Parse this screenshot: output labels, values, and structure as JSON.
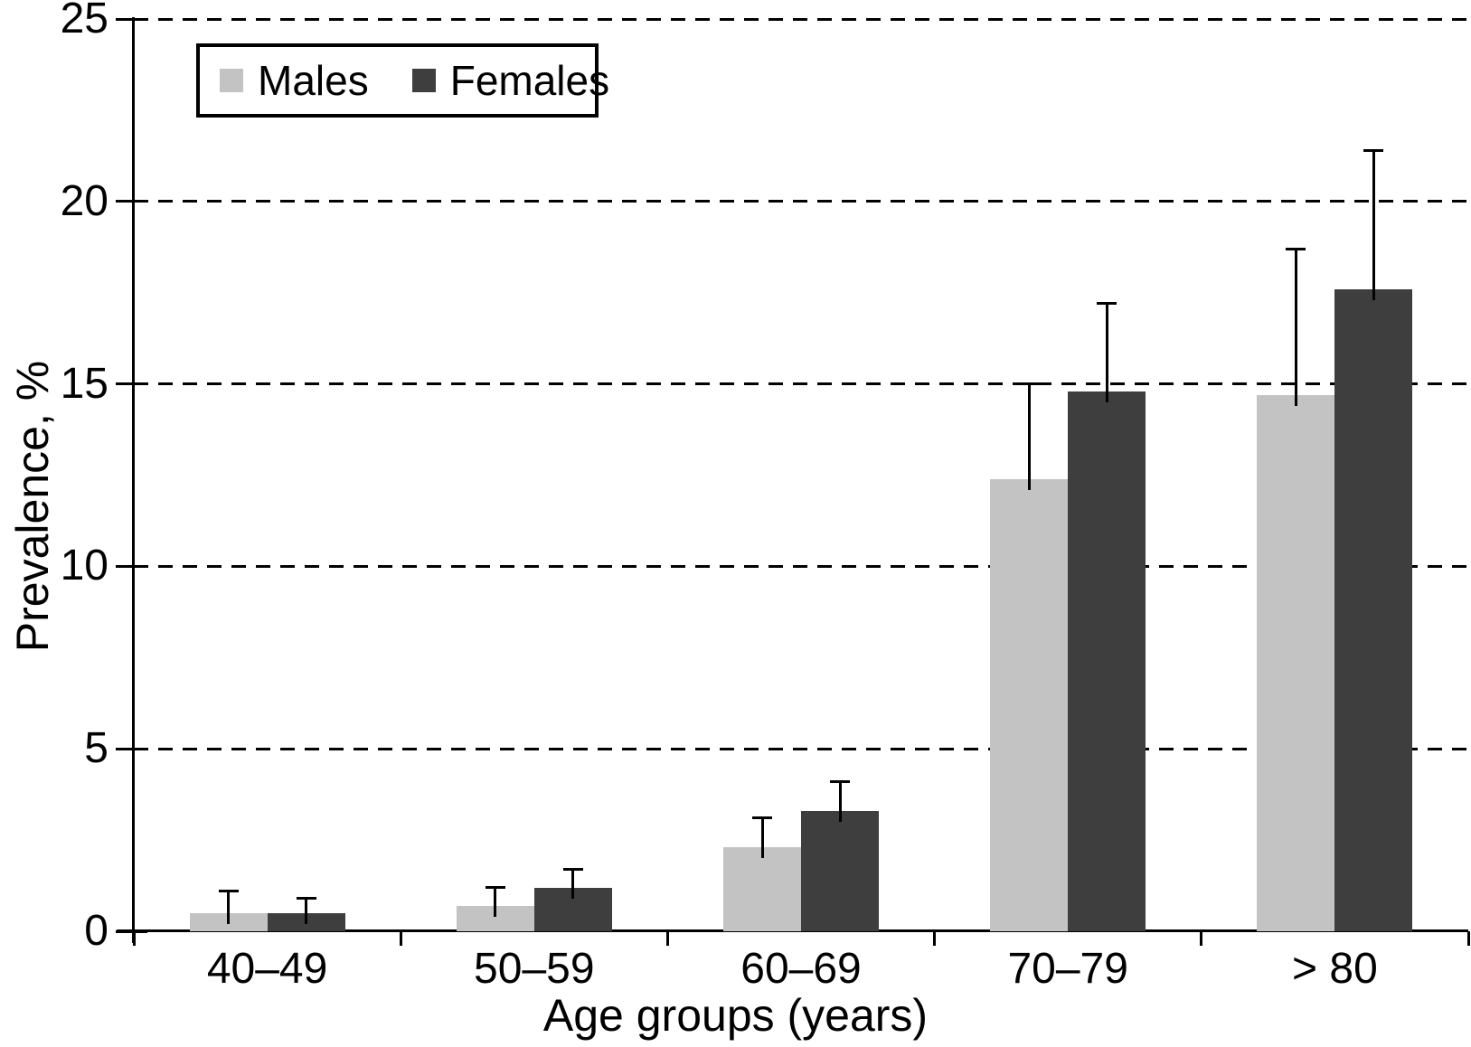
{
  "chart_data": {
    "type": "bar",
    "title": "",
    "xlabel": "Age groups (years)",
    "ylabel": "Prevalence, %",
    "categories": [
      "40–49",
      "50–59",
      "60–69",
      "70–79",
      "> 80"
    ],
    "series": [
      {
        "name": "Males",
        "color": "#c3c3c3",
        "values": [
          0.5,
          0.7,
          2.3,
          12.4,
          14.7
        ],
        "error_upper": [
          1.1,
          1.2,
          3.1,
          15.0,
          18.7
        ]
      },
      {
        "name": "Females",
        "color": "#3e3e3e",
        "values": [
          0.5,
          1.2,
          3.3,
          14.8,
          17.6
        ],
        "error_upper": [
          0.9,
          1.7,
          4.1,
          17.2,
          21.4
        ]
      }
    ],
    "ylim": [
      0,
      25
    ],
    "yticks": [
      0,
      5,
      10,
      15,
      20,
      25
    ],
    "grid": "horizontal-dashed",
    "error_bars": "upper-only",
    "legend_position": "top-left",
    "axis_color": "#000000",
    "background_color": "#ffffff"
  }
}
